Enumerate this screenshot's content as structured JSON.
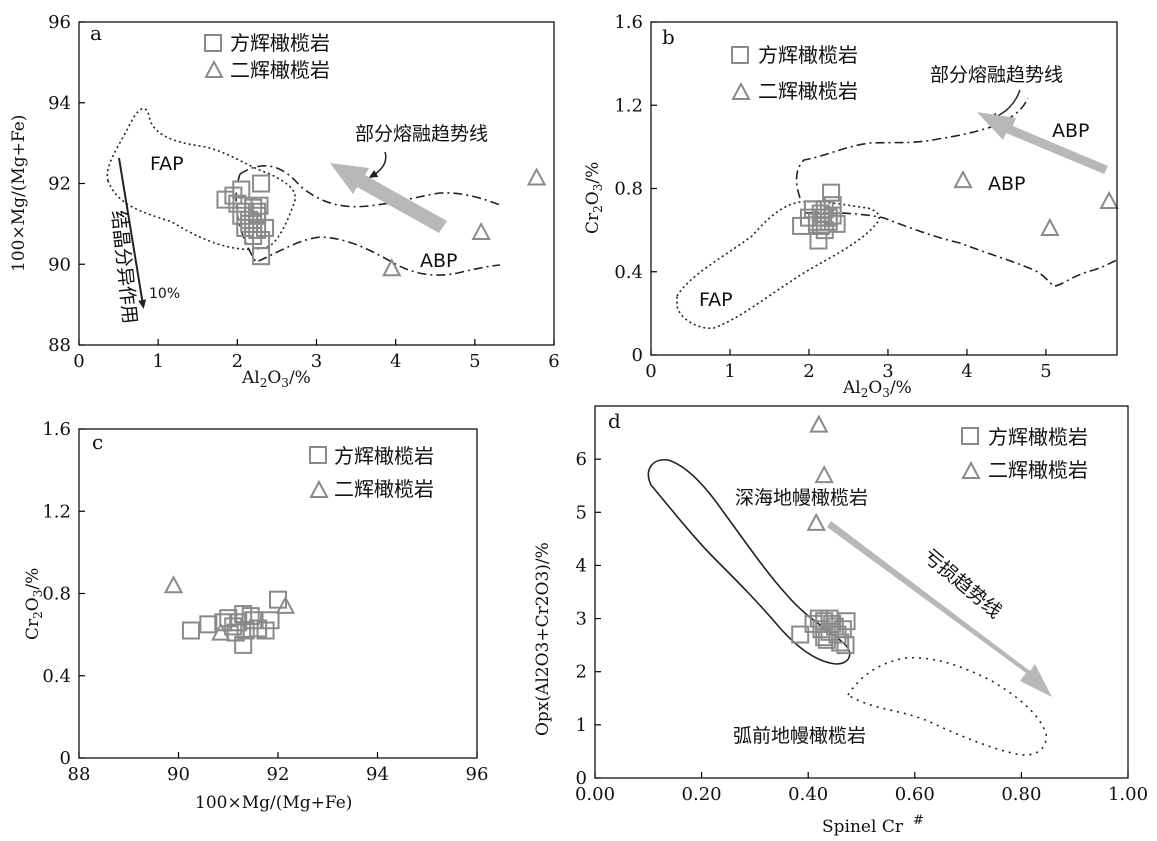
{
  "colors": {
    "marker": "#8a8a8a",
    "trend_arrow": "#b8b8b8",
    "axis": "#000000",
    "field_line": "#222222"
  },
  "chart_data": [
    {
      "panel": "a",
      "type": "scatter",
      "xlabel": "Al2O3/%",
      "ylabel": "100×Mg/(Mg+Fe)",
      "xlim": [
        0,
        6
      ],
      "ylim": [
        88,
        96
      ],
      "xticks": [
        "0",
        "1",
        "2",
        "3",
        "4",
        "5",
        "6"
      ],
      "yticks": [
        "88",
        "90",
        "92",
        "94",
        "96"
      ],
      "legend": [
        "方辉橄榄岩",
        "二辉橄榄岩"
      ],
      "series": [
        {
          "name": "方辉橄榄岩",
          "marker": "square",
          "points": [
            [
              1.85,
              91.6
            ],
            [
              1.95,
              91.7
            ],
            [
              2.05,
              91.85
            ],
            [
              2.0,
              91.5
            ],
            [
              2.1,
              91.3
            ],
            [
              2.15,
              91.1
            ],
            [
              2.2,
              91.4
            ],
            [
              2.25,
              91.2
            ],
            [
              2.1,
              90.9
            ],
            [
              2.2,
              90.7
            ],
            [
              2.3,
              90.6
            ],
            [
              2.35,
              90.9
            ],
            [
              2.15,
              91.0
            ],
            [
              2.25,
              91.3
            ],
            [
              2.3,
              92.0
            ],
            [
              2.3,
              90.2
            ],
            [
              2.05,
              91.2
            ],
            [
              2.2,
              91.0
            ],
            [
              2.25,
              90.85
            ],
            [
              2.28,
              91.45
            ]
          ]
        },
        {
          "name": "二辉橄榄岩",
          "marker": "triangle",
          "points": [
            [
              3.95,
              89.9
            ],
            [
              5.08,
              90.8
            ],
            [
              5.78,
              92.15
            ]
          ]
        }
      ],
      "field_labels": [
        "FAP",
        "ABP"
      ],
      "annotations": [
        "部分熔融趋势线",
        "结晶分异作用",
        "10%"
      ]
    },
    {
      "panel": "b",
      "type": "scatter",
      "xlabel": "Al2O3/%",
      "ylabel": "Cr2O3/%",
      "xlim": [
        0,
        5.9
      ],
      "ylim": [
        0,
        1.6
      ],
      "xticks": [
        "0",
        "1",
        "2",
        "3",
        "4",
        "5"
      ],
      "yticks": [
        "0",
        "0.4",
        "0.8",
        "1.2",
        "1.6"
      ],
      "legend": [
        "方辉橄榄岩",
        "二辉橄榄岩"
      ],
      "series": [
        {
          "name": "方辉橄榄岩",
          "marker": "square",
          "points": [
            [
              1.9,
              0.62
            ],
            [
              2.0,
              0.66
            ],
            [
              2.05,
              0.7
            ],
            [
              2.1,
              0.64
            ],
            [
              2.15,
              0.68
            ],
            [
              2.2,
              0.6
            ],
            [
              2.12,
              0.55
            ],
            [
              2.25,
              0.66
            ],
            [
              2.3,
              0.72
            ],
            [
              2.2,
              0.7
            ],
            [
              2.15,
              0.62
            ],
            [
              2.25,
              0.64
            ],
            [
              2.3,
              0.67
            ],
            [
              2.35,
              0.63
            ],
            [
              2.28,
              0.78
            ],
            [
              2.18,
              0.66
            ]
          ]
        },
        {
          "name": "二辉橄榄岩",
          "marker": "triangle",
          "points": [
            [
              3.95,
              0.84
            ],
            [
              5.05,
              0.61
            ],
            [
              5.8,
              0.74
            ]
          ]
        }
      ],
      "field_labels": [
        "FAP",
        "ABP",
        "ABP"
      ],
      "annotations": [
        "部分熔融趋势线"
      ]
    },
    {
      "panel": "c",
      "type": "scatter",
      "xlabel": "100×Mg/(Mg+Fe)",
      "ylabel": "Cr2O3/%",
      "xlim": [
        88,
        96
      ],
      "ylim": [
        0,
        1.6
      ],
      "xticks": [
        "88",
        "90",
        "92",
        "94",
        "96"
      ],
      "yticks": [
        "0",
        "0.4",
        "0.8",
        "1.2",
        "1.6"
      ],
      "legend": [
        "方辉橄榄岩",
        "二辉橄榄岩"
      ],
      "series": [
        {
          "name": "方辉橄榄岩",
          "marker": "square",
          "points": [
            [
              90.25,
              0.62
            ],
            [
              90.6,
              0.65
            ],
            [
              90.9,
              0.66
            ],
            [
              91.0,
              0.68
            ],
            [
              91.1,
              0.64
            ],
            [
              91.2,
              0.66
            ],
            [
              91.3,
              0.7
            ],
            [
              91.35,
              0.62
            ],
            [
              91.3,
              0.55
            ],
            [
              91.5,
              0.67
            ],
            [
              91.6,
              0.63
            ],
            [
              91.75,
              0.62
            ],
            [
              91.85,
              0.67
            ],
            [
              92.0,
              0.77
            ],
            [
              91.15,
              0.61
            ],
            [
              91.45,
              0.69
            ]
          ]
        },
        {
          "name": "二辉橄榄岩",
          "marker": "triangle",
          "points": [
            [
              89.9,
              0.84
            ],
            [
              90.85,
              0.61
            ],
            [
              92.15,
              0.74
            ]
          ]
        }
      ]
    },
    {
      "panel": "d",
      "type": "scatter",
      "xlabel": "Spinel Cr#",
      "ylabel": "Opx(Al2O3+Cr2O3)/%",
      "xlim": [
        0,
        1
      ],
      "ylim": [
        0,
        7
      ],
      "xticks": [
        "0.00",
        "0.20",
        "0.40",
        "0.60",
        "0.80",
        "1.00"
      ],
      "yticks": [
        "0",
        "1",
        "2",
        "3",
        "4",
        "5",
        "6"
      ],
      "legend": [
        "方辉橄榄岩",
        "二辉橄榄岩"
      ],
      "series": [
        {
          "name": "方辉橄榄岩",
          "marker": "square",
          "points": [
            [
              0.385,
              2.7
            ],
            [
              0.41,
              2.9
            ],
            [
              0.42,
              3.0
            ],
            [
              0.425,
              2.8
            ],
            [
              0.43,
              2.95
            ],
            [
              0.435,
              2.6
            ],
            [
              0.44,
              2.75
            ],
            [
              0.445,
              2.9
            ],
            [
              0.45,
              2.85
            ],
            [
              0.455,
              2.7
            ],
            [
              0.46,
              2.55
            ],
            [
              0.465,
              2.8
            ],
            [
              0.47,
              2.5
            ],
            [
              0.472,
              2.95
            ],
            [
              0.44,
              3.0
            ],
            [
              0.43,
              2.65
            ]
          ]
        },
        {
          "name": "二辉橄榄岩",
          "marker": "triangle",
          "points": [
            [
              0.415,
              4.8
            ],
            [
              0.42,
              6.65
            ],
            [
              0.43,
              5.7
            ]
          ]
        }
      ],
      "field_labels": [
        "深海地幔橄榄岩",
        "弧前地幔橄榄岩"
      ],
      "annotations": [
        "亏损趋势线"
      ]
    }
  ]
}
